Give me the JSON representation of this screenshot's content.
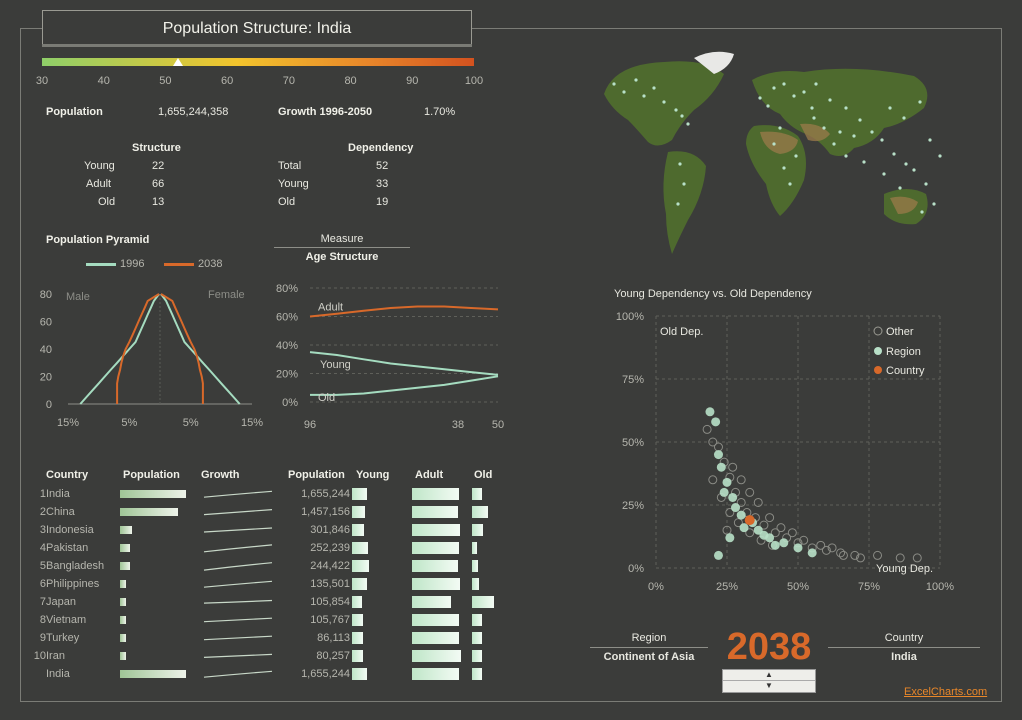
{
  "header": {
    "title": "Population Structure: India",
    "scale_ticks": [
      "30",
      "40",
      "50",
      "60",
      "70",
      "80",
      "90",
      "100"
    ],
    "scale_value": 52
  },
  "summary": {
    "population_label": "Population",
    "population_value": "1,655,244,358",
    "growth_label": "Growth 1996-2050",
    "growth_value": "1.70%"
  },
  "structure": {
    "title": "Structure",
    "rows": [
      {
        "label": "Young",
        "value": "22"
      },
      {
        "label": "Adult",
        "value": "66"
      },
      {
        "label": "Old",
        "value": "13"
      }
    ]
  },
  "dependency": {
    "title": "Dependency",
    "rows": [
      {
        "label": "Total",
        "value": "52"
      },
      {
        "label": "Young",
        "value": "33"
      },
      {
        "label": "Old",
        "value": "19"
      }
    ]
  },
  "measure": {
    "label": "Measure",
    "value": "Age Structure"
  },
  "table": {
    "headers": {
      "country": "Country",
      "population": "Population",
      "growth": "Growth",
      "population2": "Population",
      "young": "Young",
      "adult": "Adult",
      "old": "Old"
    },
    "rows": [
      {
        "rank": "1",
        "country": "India",
        "pop": 1655244,
        "pop_text": "1,655,244",
        "young": 0.22,
        "adult": 0.66,
        "old": 0.13
      },
      {
        "rank": "2",
        "country": "China",
        "pop": 1457156,
        "pop_text": "1,457,156",
        "young": 0.2,
        "adult": 0.65,
        "old": 0.22
      },
      {
        "rank": "3",
        "country": "Indonesia",
        "pop": 301846,
        "pop_text": "301,846",
        "young": 0.18,
        "adult": 0.67,
        "old": 0.15
      },
      {
        "rank": "4",
        "country": "Pakistan",
        "pop": 252239,
        "pop_text": "252,239",
        "young": 0.24,
        "adult": 0.66,
        "old": 0.07
      },
      {
        "rank": "5",
        "country": "Bangladesh",
        "pop": 244422,
        "pop_text": "244,422",
        "young": 0.25,
        "adult": 0.65,
        "old": 0.08
      },
      {
        "rank": "6",
        "country": "Philippines",
        "pop": 135501,
        "pop_text": "135,501",
        "young": 0.22,
        "adult": 0.67,
        "old": 0.09
      },
      {
        "rank": "7",
        "country": "Japan",
        "pop": 105854,
        "pop_text": "105,854",
        "young": 0.15,
        "adult": 0.55,
        "old": 0.3
      },
      {
        "rank": "8",
        "country": "Vietnam",
        "pop": 105767,
        "pop_text": "105,767",
        "young": 0.17,
        "adult": 0.66,
        "old": 0.14
      },
      {
        "rank": "9",
        "country": "Turkey",
        "pop": 86113,
        "pop_text": "86,113",
        "young": 0.17,
        "adult": 0.66,
        "old": 0.13
      },
      {
        "rank": "10",
        "country": "Iran",
        "pop": 80257,
        "pop_text": "80,257",
        "young": 0.16,
        "adult": 0.68,
        "old": 0.13
      },
      {
        "rank": "",
        "country": "India",
        "pop": 1655244,
        "pop_text": "1,655,244",
        "young": 0.22,
        "adult": 0.66,
        "old": 0.13
      }
    ]
  },
  "pyramid": {
    "title": "Population Pyramid",
    "legend": [
      "1996",
      "2038"
    ],
    "male_label": "Male",
    "female_label": "Female",
    "y_ticks": [
      "0",
      "20",
      "40",
      "60",
      "80"
    ],
    "x_ticks": [
      "15%",
      "5%",
      "5%",
      "15%"
    ]
  },
  "age_chart": {
    "y_ticks": [
      "0%",
      "20%",
      "40%",
      "60%",
      "80%"
    ],
    "x_ticks": [
      "96",
      "38",
      "50"
    ],
    "series_labels": [
      "Adult",
      "Young",
      "Old"
    ]
  },
  "scatter": {
    "title": "Young Dependency vs. Old Dependency",
    "y_label": "Old Dep.",
    "x_label": "Young Dep.",
    "x_ticks": [
      "0%",
      "25%",
      "50%",
      "75%",
      "100%"
    ],
    "y_ticks": [
      "0%",
      "25%",
      "50%",
      "75%",
      "100%"
    ],
    "legend": [
      "Other",
      "Region",
      "Country"
    ]
  },
  "controls": {
    "region_label": "Region",
    "region_value": "Continent of Asia",
    "year": "2038",
    "country_label": "Country",
    "country_value": "India"
  },
  "footer": {
    "credit": "ExcelCharts.com"
  },
  "chart_data": [
    {
      "type": "line",
      "title": "Population Pyramid",
      "series": [
        {
          "name": "1996",
          "male": [
            13,
            12,
            11,
            10,
            9,
            8,
            7,
            6,
            5,
            4,
            3.5,
            3,
            2.5,
            2,
            1.5,
            1
          ],
          "female": [
            13,
            12,
            11,
            10,
            9,
            8,
            7,
            6,
            5,
            4,
            3.5,
            3,
            2.5,
            2,
            1.5,
            1
          ]
        },
        {
          "name": "2038",
          "male": [
            7,
            7,
            7,
            7,
            6.8,
            6.5,
            6.3,
            6,
            5.6,
            5,
            4.5,
            4,
            3.5,
            3,
            2.5,
            2
          ],
          "female": [
            7,
            7,
            7,
            7,
            6.8,
            6.5,
            6.3,
            6,
            5.6,
            5,
            4.5,
            4,
            3.5,
            3,
            2.5,
            2
          ]
        }
      ],
      "age_groups": [
        0,
        5,
        10,
        15,
        20,
        25,
        30,
        35,
        40,
        45,
        50,
        55,
        60,
        65,
        70,
        75
      ],
      "xlim": [
        -15,
        15
      ],
      "ylim": [
        0,
        80
      ]
    },
    {
      "type": "line",
      "title": "Age Structure",
      "x_labels": [
        "96",
        "38",
        "50"
      ],
      "series": [
        {
          "name": "Adult",
          "values": [
            0.6,
            0.62,
            0.64,
            0.66,
            0.67,
            0.67,
            0.66,
            0.65
          ]
        },
        {
          "name": "Young",
          "values": [
            0.35,
            0.33,
            0.3,
            0.27,
            0.25,
            0.23,
            0.21,
            0.19
          ]
        },
        {
          "name": "Old",
          "values": [
            0.05,
            0.05,
            0.06,
            0.08,
            0.1,
            0.12,
            0.15,
            0.18
          ]
        }
      ],
      "ylim": [
        0,
        0.8
      ]
    },
    {
      "type": "scatter",
      "title": "Young Dependency vs. Old Dependency",
      "xlim": [
        0,
        1
      ],
      "ylim": [
        0,
        1
      ],
      "country": {
        "x": 0.33,
        "y": 0.19
      },
      "region": [
        [
          0.19,
          0.62
        ],
        [
          0.21,
          0.58
        ],
        [
          0.22,
          0.45
        ],
        [
          0.23,
          0.4
        ],
        [
          0.25,
          0.34
        ],
        [
          0.27,
          0.28
        ],
        [
          0.28,
          0.24
        ],
        [
          0.3,
          0.21
        ],
        [
          0.34,
          0.18
        ],
        [
          0.36,
          0.15
        ],
        [
          0.4,
          0.12
        ],
        [
          0.45,
          0.1
        ],
        [
          0.5,
          0.08
        ],
        [
          0.26,
          0.12
        ],
        [
          0.22,
          0.05
        ],
        [
          0.55,
          0.06
        ],
        [
          0.42,
          0.09
        ],
        [
          0.31,
          0.16
        ],
        [
          0.38,
          0.13
        ],
        [
          0.24,
          0.3
        ]
      ],
      "other": [
        [
          0.18,
          0.55
        ],
        [
          0.2,
          0.5
        ],
        [
          0.22,
          0.48
        ],
        [
          0.24,
          0.42
        ],
        [
          0.26,
          0.36
        ],
        [
          0.28,
          0.3
        ],
        [
          0.3,
          0.26
        ],
        [
          0.32,
          0.22
        ],
        [
          0.35,
          0.2
        ],
        [
          0.38,
          0.17
        ],
        [
          0.42,
          0.14
        ],
        [
          0.46,
          0.12
        ],
        [
          0.5,
          0.1
        ],
        [
          0.55,
          0.08
        ],
        [
          0.6,
          0.07
        ],
        [
          0.65,
          0.06
        ],
        [
          0.7,
          0.05
        ],
        [
          0.78,
          0.05
        ],
        [
          0.86,
          0.04
        ],
        [
          0.92,
          0.04
        ],
        [
          0.27,
          0.4
        ],
        [
          0.3,
          0.35
        ],
        [
          0.33,
          0.3
        ],
        [
          0.36,
          0.26
        ],
        [
          0.4,
          0.2
        ],
        [
          0.44,
          0.16
        ],
        [
          0.48,
          0.14
        ],
        [
          0.52,
          0.11
        ],
        [
          0.58,
          0.09
        ],
        [
          0.62,
          0.08
        ],
        [
          0.2,
          0.35
        ],
        [
          0.23,
          0.28
        ],
        [
          0.26,
          0.22
        ],
        [
          0.29,
          0.18
        ],
        [
          0.33,
          0.14
        ],
        [
          0.37,
          0.11
        ],
        [
          0.41,
          0.09
        ],
        [
          0.66,
          0.05
        ],
        [
          0.72,
          0.04
        ],
        [
          0.25,
          0.15
        ]
      ]
    }
  ]
}
